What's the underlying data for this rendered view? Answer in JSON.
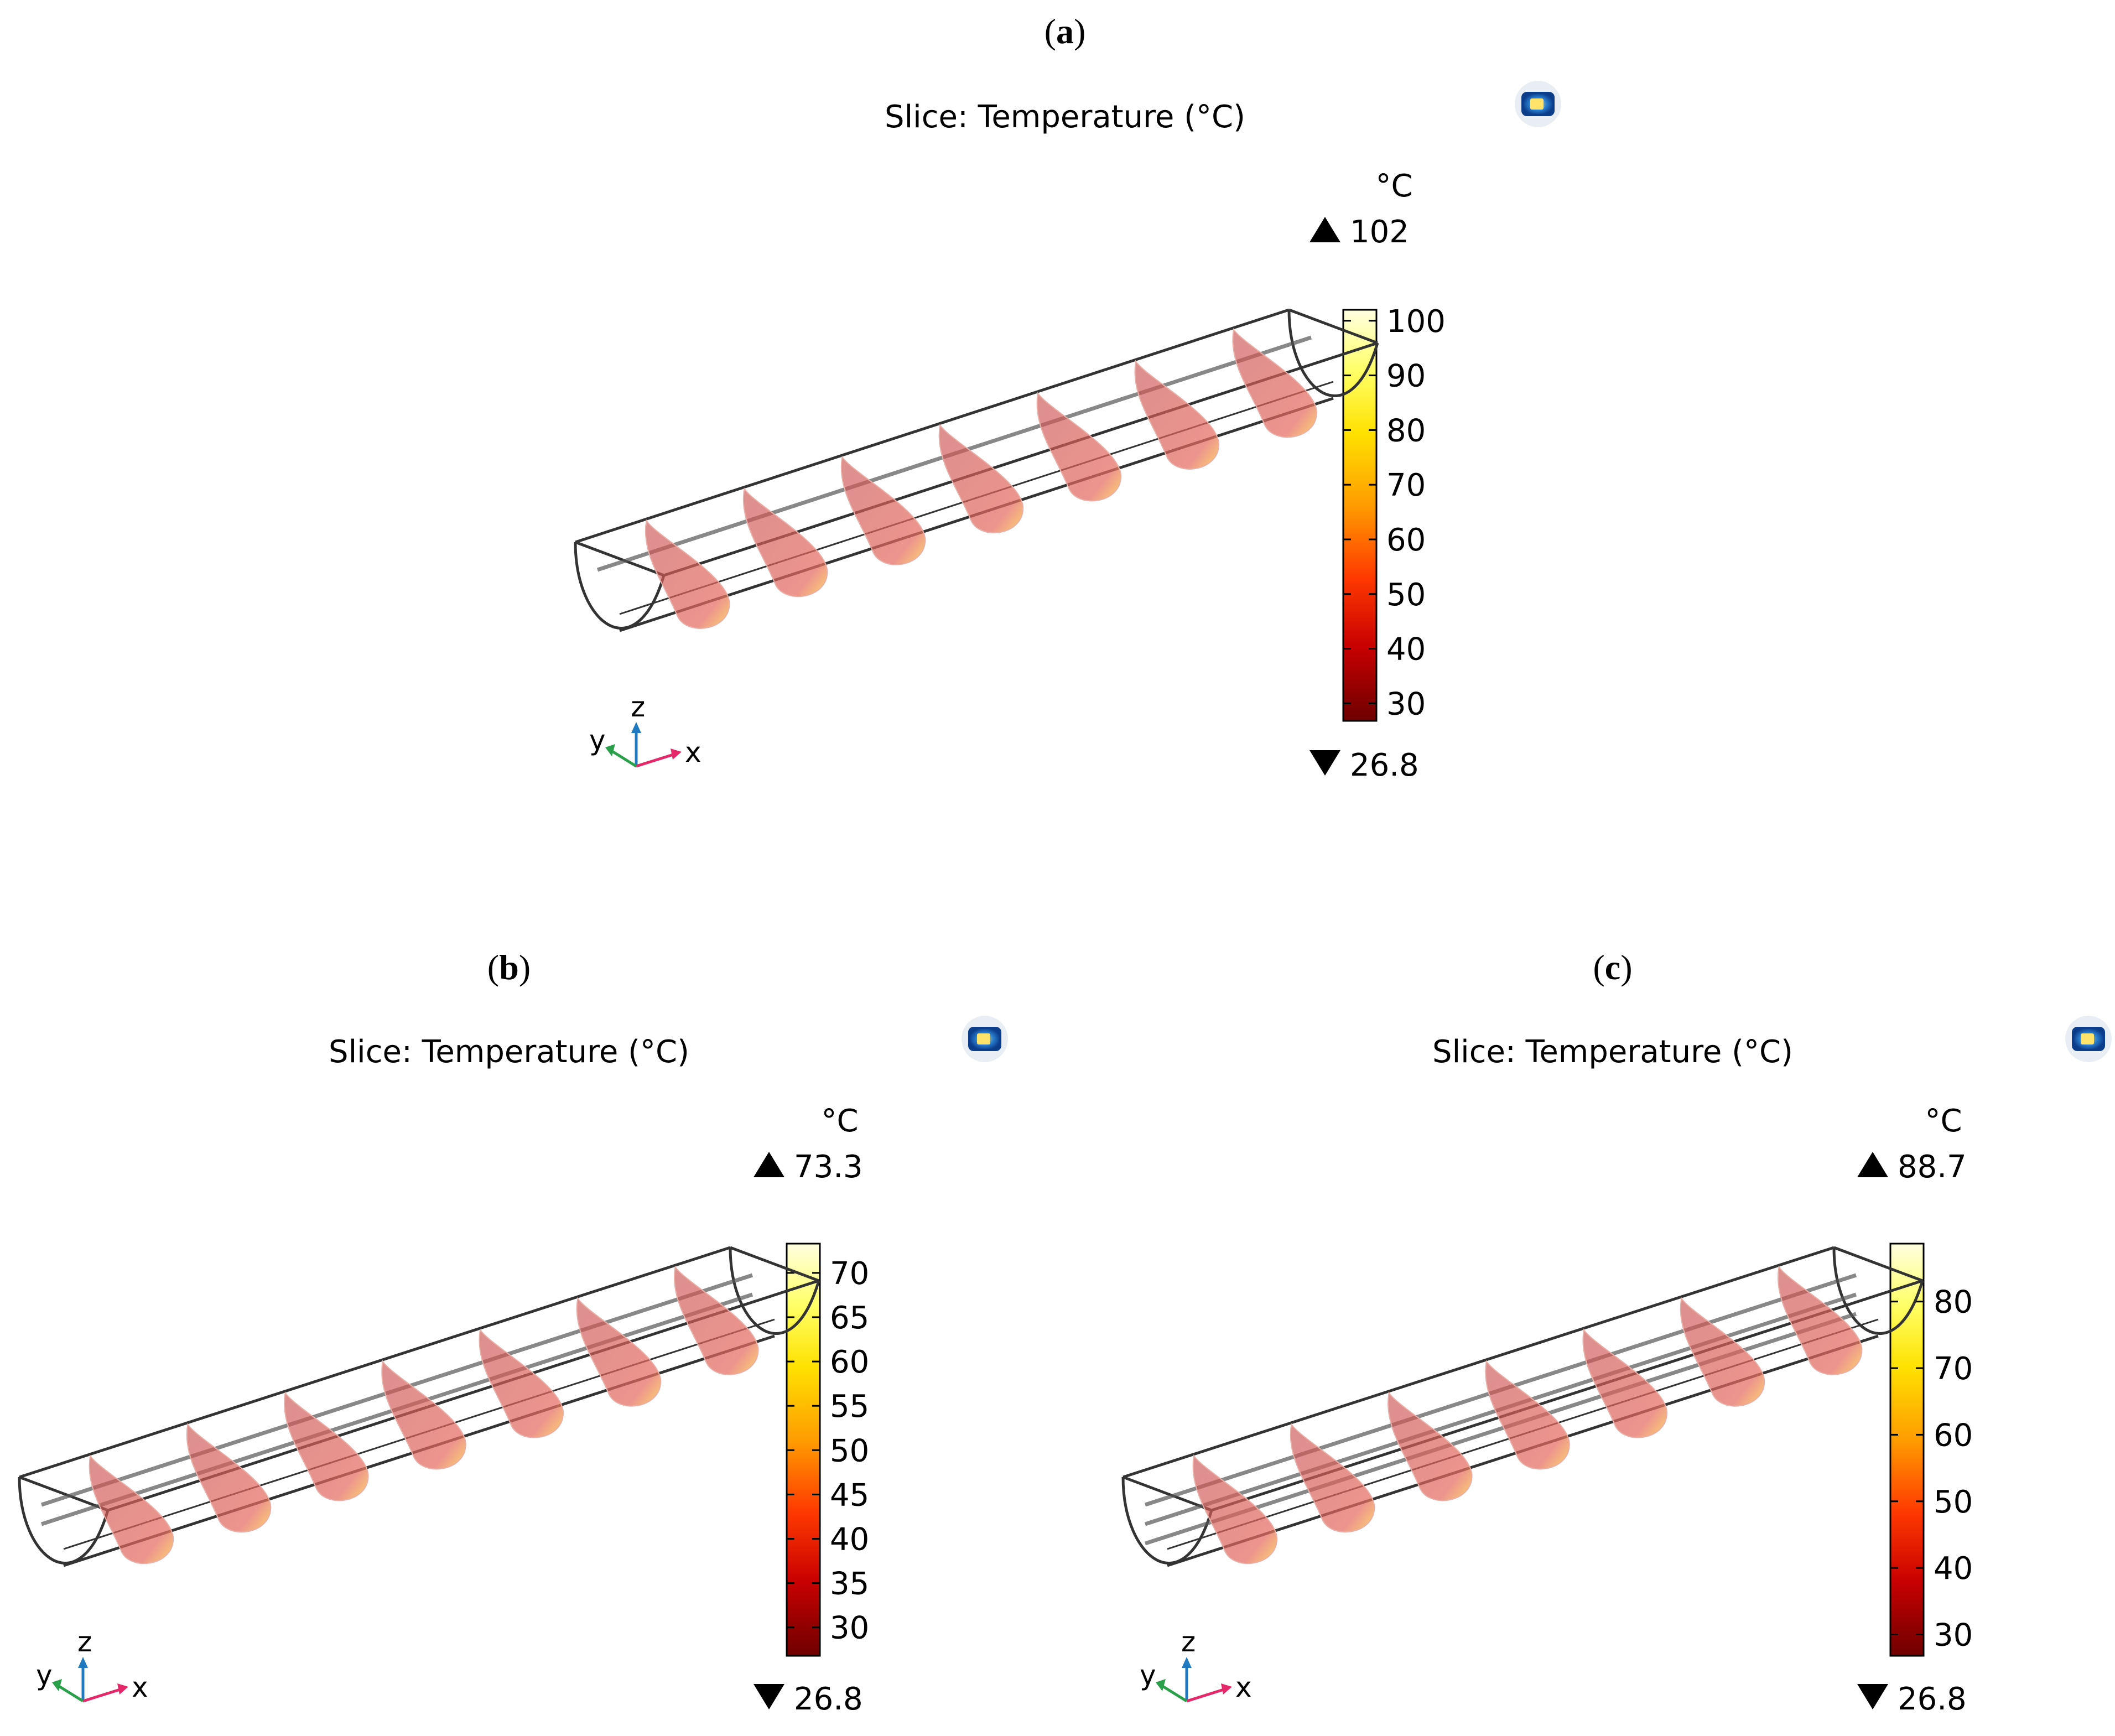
{
  "panels": [
    {
      "id": "a",
      "label": "(a)",
      "label_letter": "a",
      "title": "Slice: Temperature (°C)",
      "unit": "°C",
      "max_value": "102",
      "min_value": "26.8",
      "colorbar_ticks": [
        "100",
        "90",
        "80",
        "70",
        "60",
        "50",
        "40",
        "30"
      ],
      "colorbar_tick_values": [
        100,
        90,
        80,
        70,
        60,
        50,
        40,
        30
      ],
      "scale_min": 26.8,
      "scale_max": 102,
      "axes": {
        "x": "x",
        "y": "y",
        "z": "z"
      },
      "slice_count": 7,
      "inner_rods": 1
    },
    {
      "id": "b",
      "label": "(b)",
      "label_letter": "b",
      "title": "Slice: Temperature (°C)",
      "unit": "°C",
      "max_value": "73.3",
      "min_value": "26.8",
      "colorbar_ticks": [
        "70",
        "65",
        "60",
        "55",
        "50",
        "45",
        "40",
        "35",
        "30"
      ],
      "colorbar_tick_values": [
        70,
        65,
        60,
        55,
        50,
        45,
        40,
        35,
        30
      ],
      "scale_min": 26.8,
      "scale_max": 73.3,
      "axes": {
        "x": "x",
        "y": "y",
        "z": "z"
      },
      "slice_count": 7,
      "inner_rods": 2
    },
    {
      "id": "c",
      "label": "(c)",
      "label_letter": "c",
      "title": "Slice: Temperature (°C)",
      "unit": "°C",
      "max_value": "88.7",
      "min_value": "26.8",
      "colorbar_ticks": [
        "80",
        "70",
        "60",
        "50",
        "40",
        "30"
      ],
      "colorbar_tick_values": [
        80,
        70,
        60,
        50,
        40,
        30
      ],
      "scale_min": 26.8,
      "scale_max": 88.7,
      "axes": {
        "x": "x",
        "y": "y",
        "z": "z"
      },
      "slice_count": 7,
      "inner_rods": 3
    }
  ],
  "colors": {
    "colorbar_stops": [
      "#6e0000",
      "#c80000",
      "#ff3a00",
      "#ff9a00",
      "#ffe100",
      "#ffff66",
      "#ffffe0"
    ],
    "slice_fill": "#d9605f",
    "slice_hot": "#ffd24a",
    "frame_stroke": "#333333",
    "axis_x": "#e5286a",
    "axis_y": "#2aa04a",
    "axis_z": "#1f7ac2"
  },
  "icons": {
    "logo": "comsol-logo-icon",
    "max_marker": "triangle-up-icon",
    "min_marker": "triangle-down-icon"
  }
}
